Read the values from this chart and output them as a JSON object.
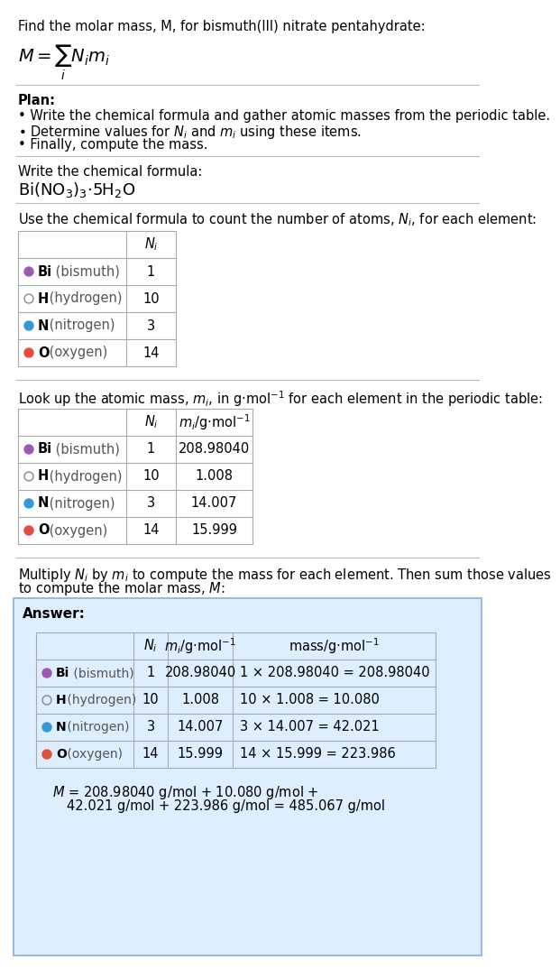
{
  "title_line1": "Find the molar mass, M, for bismuth(III) nitrate pentahydrate:",
  "plan_header": "Plan:",
  "plan_items": [
    "• Write the chemical formula and gather atomic masses from the periodic table.",
    "• Determine values for $N_i$ and $m_i$ using these items.",
    "• Finally, compute the mass."
  ],
  "formula_header": "Write the chemical formula:",
  "count_header": "Use the chemical formula to count the number of atoms, $N_i$, for each element:",
  "lookup_header": "Look up the atomic mass, $m_i$, in g·mol$^{-1}$ for each element in the periodic table:",
  "multiply_header_1": "Multiply $N_i$ by $m_i$ to compute the mass for each element. Then sum those values",
  "multiply_header_2": "to compute the molar mass, $M$:",
  "answer_label": "Answer:",
  "elements": [
    "Bi (bismuth)",
    "H (hydrogen)",
    "N (nitrogen)",
    "O (oxygen)"
  ],
  "element_symbols": [
    "Bi",
    "H",
    "N",
    "O"
  ],
  "element_colors": [
    "#9b59b6",
    "#ffffff",
    "#3498db",
    "#e74c3c"
  ],
  "element_dot_border": [
    false,
    true,
    false,
    false
  ],
  "Ni_values": [
    1,
    10,
    3,
    14
  ],
  "mi_values": [
    "208.98040",
    "1.008",
    "14.007",
    "15.999"
  ],
  "mass_expressions": [
    "1 × 208.98040 = 208.98040",
    "10 × 1.008 = 10.080",
    "3 × 14.007 = 42.021",
    "14 × 15.999 = 223.986"
  ],
  "final_eq_line1": "$M$ = 208.98040 g/mol + 10.080 g/mol +",
  "final_eq_line2": "42.021 g/mol + 223.986 g/mol = 485.067 g/mol",
  "bg_color": "#ffffff",
  "answer_bg_color": "#ddeeff",
  "answer_border_color": "#99bbdd",
  "table_line_color": "#aaaaaa",
  "text_color": "#000000",
  "gray_text": "#555555"
}
